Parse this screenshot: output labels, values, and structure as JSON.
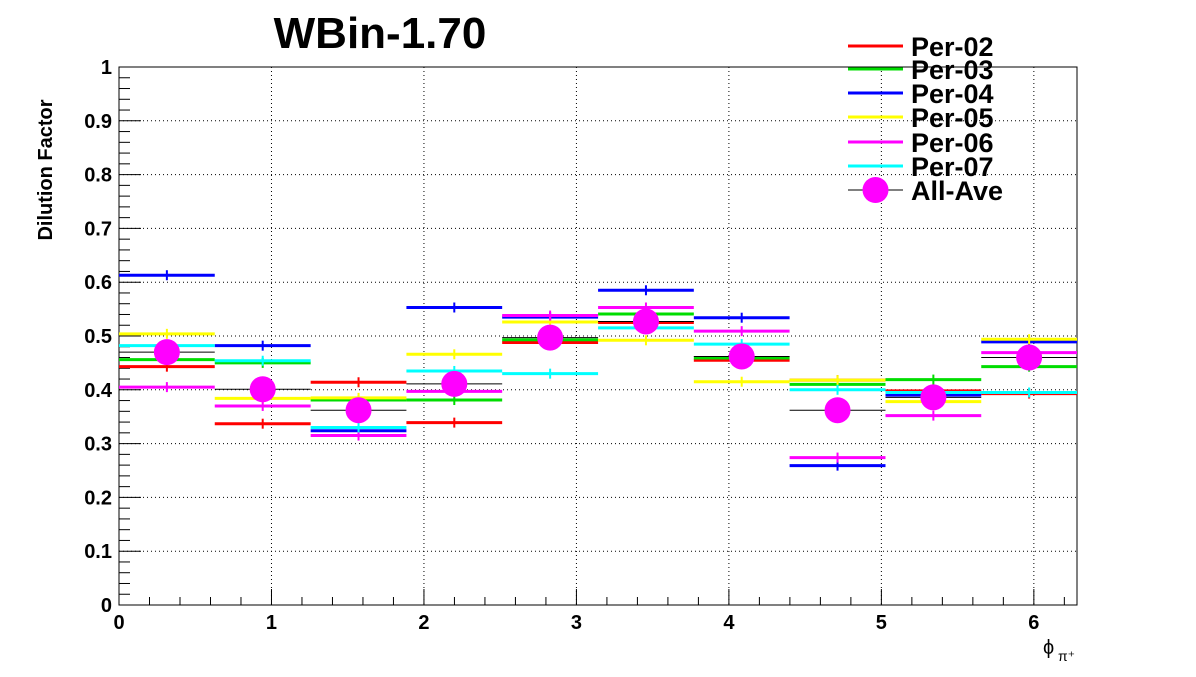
{
  "chart_data": {
    "type": "scatter",
    "title": "WBin-1.70",
    "xlabel_symbol": "ϕ",
    "xlabel_sub": "π⁺",
    "ylabel": "Dilution Factor",
    "xlim": [
      0,
      6.283
    ],
    "ylim": [
      0,
      1
    ],
    "grid": true,
    "legend_position": "top-right",
    "xticks": [
      "0",
      "1",
      "2",
      "3",
      "4",
      "5",
      "6"
    ],
    "yticks": [
      "0",
      "0.1",
      "0.2",
      "0.3",
      "0.4",
      "0.5",
      "0.6",
      "0.7",
      "0.8",
      "0.9",
      "1"
    ],
    "bin_edges": [
      0,
      0.628,
      1.257,
      1.885,
      2.513,
      3.142,
      3.77,
      4.398,
      5.027,
      5.655,
      6.283
    ],
    "series": [
      {
        "name": "Per-02",
        "color": "#ff0000",
        "values": [
          0.443,
          0.337,
          0.414,
          0.339,
          0.488,
          0.525,
          0.455,
          0.418,
          0.398,
          0.393
        ]
      },
      {
        "name": "Per-03",
        "color": "#00dd00",
        "values": [
          0.456,
          0.45,
          0.381,
          0.381,
          0.493,
          0.541,
          0.459,
          0.41,
          0.419,
          0.443
        ]
      },
      {
        "name": "Per-04",
        "color": "#0000ff",
        "values": [
          0.613,
          0.482,
          0.324,
          0.553,
          0.535,
          0.585,
          0.534,
          0.259,
          0.39,
          0.489
        ]
      },
      {
        "name": "Per-05",
        "color": "#ffff00",
        "values": [
          0.504,
          0.384,
          0.385,
          0.466,
          0.526,
          0.492,
          0.415,
          0.418,
          0.378,
          0.494
        ]
      },
      {
        "name": "Per-06",
        "color": "#ff00ff",
        "values": [
          0.405,
          0.37,
          0.315,
          0.397,
          0.538,
          0.553,
          0.509,
          0.274,
          0.352,
          0.469
        ]
      },
      {
        "name": "Per-07",
        "color": "#00ffff",
        "values": [
          0.482,
          0.454,
          0.33,
          0.435,
          0.43,
          0.515,
          0.485,
          0.4,
          0.395,
          0.395
        ]
      }
    ],
    "average": {
      "name": "All-Ave",
      "color": "#ff00ff",
      "values": [
        0.47,
        0.401,
        0.362,
        0.411,
        0.497,
        0.527,
        0.462,
        0.362,
        0.386,
        0.46
      ]
    }
  }
}
